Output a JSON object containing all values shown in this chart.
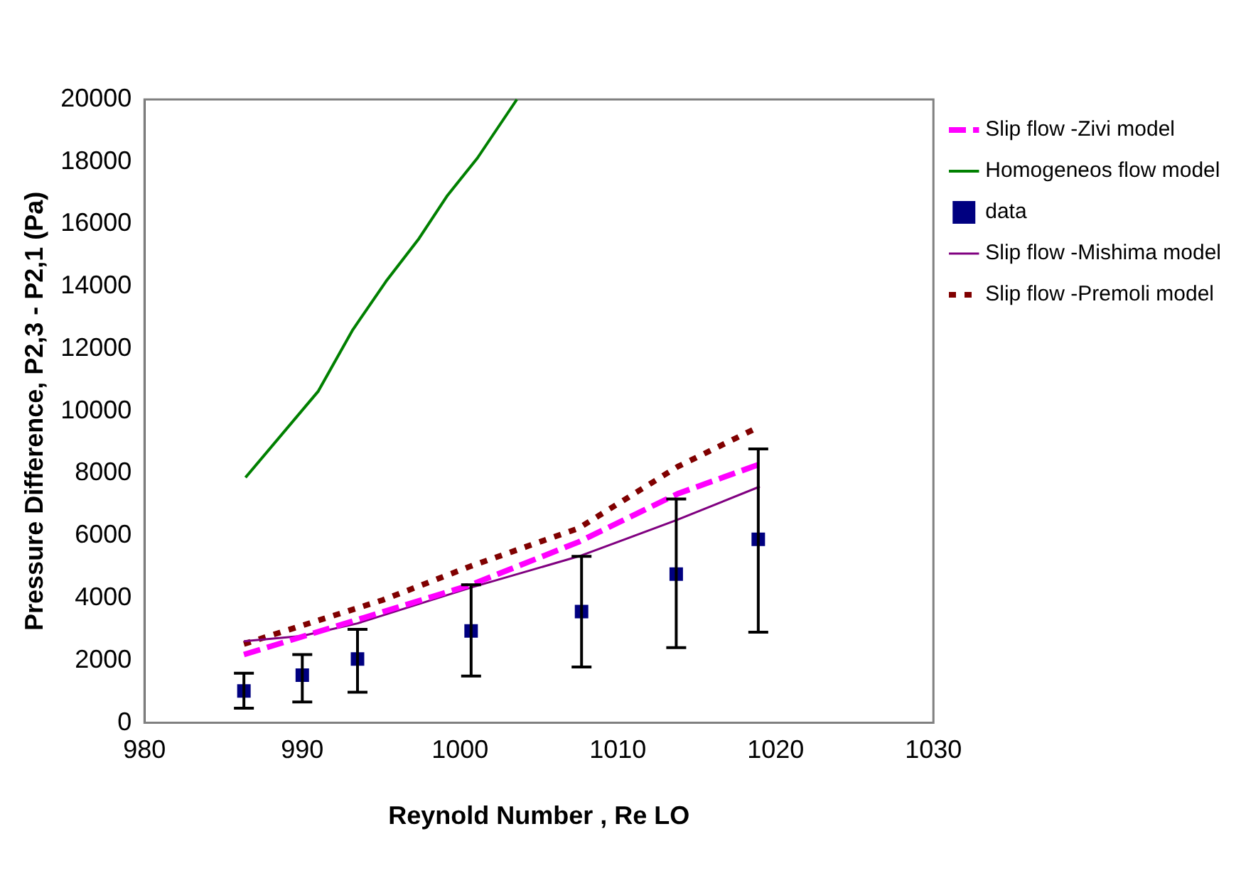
{
  "chart_data": {
    "type": "line",
    "xlabel": "Reynold Number , Re LO",
    "ylabel": "Pressure Difference, P2,3 - P2,1 (Pa)",
    "xlim": [
      980,
      1030
    ],
    "xticks": [
      980,
      990,
      1000,
      1010,
      1020,
      1030
    ],
    "ylim": [
      0,
      20000
    ],
    "yticks": [
      0,
      2000,
      4000,
      6000,
      8000,
      10000,
      12000,
      14000,
      16000,
      18000,
      20000
    ],
    "legend": "right",
    "grid": false,
    "series": [
      {
        "name": "Slip flow -Zivi model",
        "color": "#ff00ff",
        "line_style": "dashed",
        "marker": "none",
        "x": [
          986.3,
          1000.7,
          1007.5,
          1013.8,
          1019.0
        ],
        "values": [
          2190,
          4430,
          5800,
          7350,
          8300
        ]
      },
      {
        "name": "Homogeneos flow model",
        "color": "#008000",
        "line_style": "solid",
        "marker": "none",
        "x": [
          986.4,
          991.0,
          993.2,
          995.3,
          997.4,
          999.2,
          1001.1,
          1003.6
        ],
        "values": [
          7870,
          10630,
          12610,
          14160,
          15540,
          16920,
          18120,
          20000
        ]
      },
      {
        "name": "data",
        "type": "scatter",
        "color": "#000080",
        "marker": "square",
        "x": [
          986.3,
          990.0,
          993.5,
          1000.7,
          1007.7,
          1013.7,
          1018.9
        ],
        "values": [
          1020,
          1530,
          2050,
          2950,
          3570,
          4770,
          5890
        ],
        "errors": [
          [
            470,
            1590
          ],
          [
            670,
            2190
          ],
          [
            980,
            3000
          ],
          [
            1500,
            4430
          ],
          [
            1790,
            5340
          ],
          [
            2410,
            7180
          ],
          [
            2910,
            8790
          ]
        ]
      },
      {
        "name": "Slip flow -Mishima model",
        "color": "#800080",
        "line_style": "solid",
        "marker": "none",
        "x": [
          986.3,
          990.0,
          993.5,
          1000.7,
          1007.7,
          1013.7,
          1019.0
        ],
        "values": [
          2620,
          2790,
          3190,
          4340,
          5370,
          6500,
          7580
        ]
      },
      {
        "name": "Slip flow -Premoli model",
        "color": "#800000",
        "line_style": "dotted",
        "marker": "none",
        "x": [
          986.3,
          995.1,
          1000.7,
          1007.5,
          1013.8,
          1018.8
        ],
        "values": [
          2530,
          3940,
          5030,
          6240,
          8220,
          9460
        ]
      }
    ]
  }
}
